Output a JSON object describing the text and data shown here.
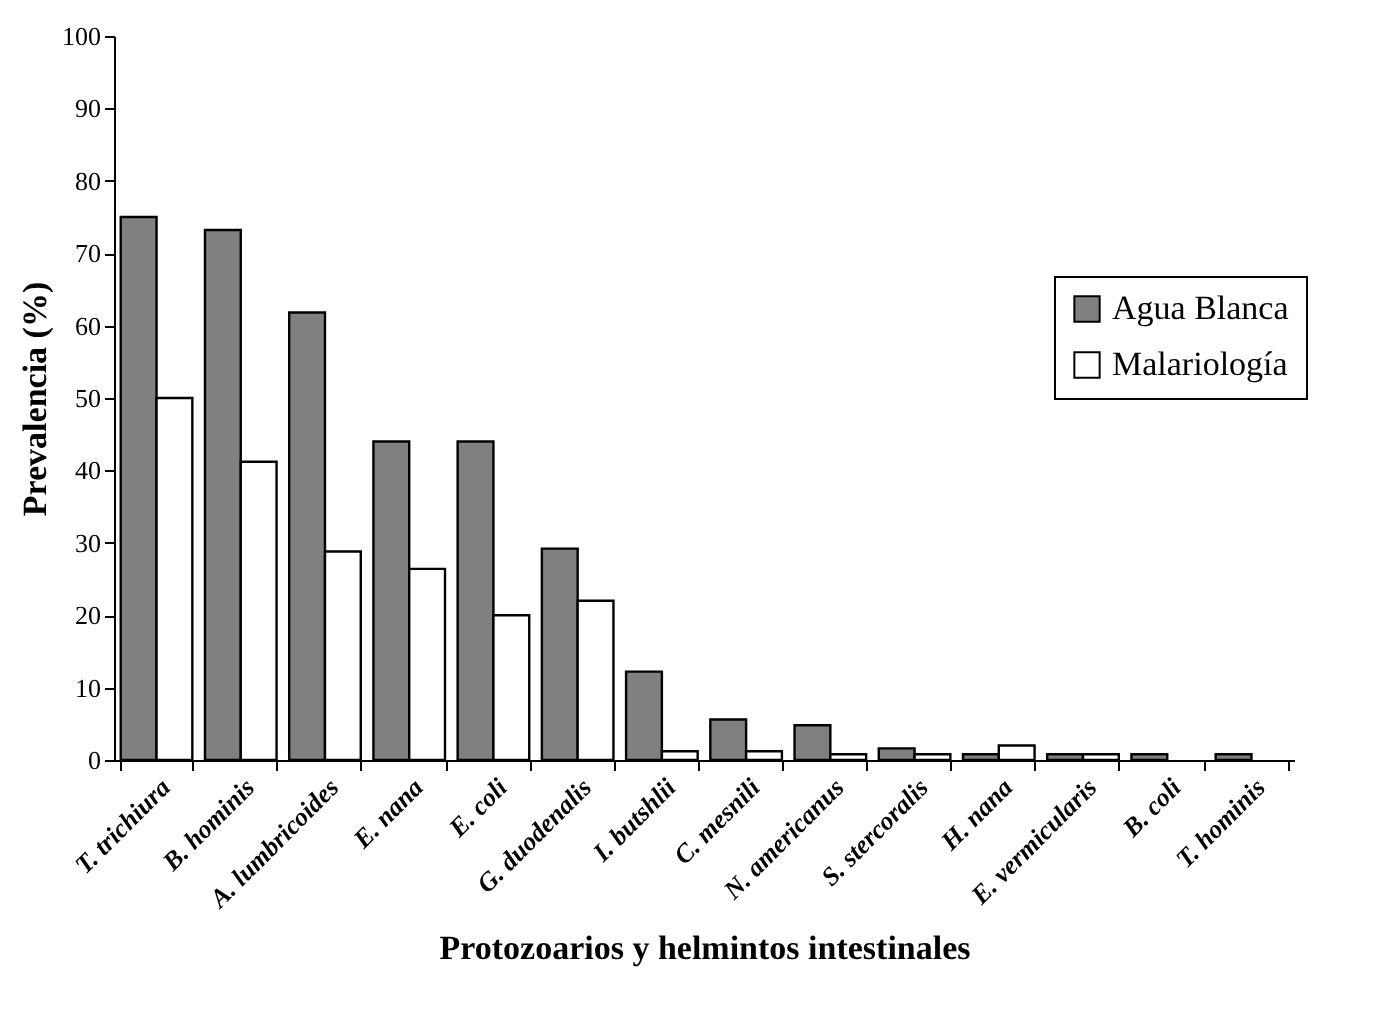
{
  "chart_data": {
    "type": "bar",
    "xlabel": "Protozoarios y helmintos intestinales",
    "ylabel": "Prevalencia (%)",
    "categories": [
      "T. trichiura",
      "B. hominis",
      "A. lumbricoides",
      "E. nana",
      "E. coli",
      "G. duodenalis",
      "I. butshlii",
      "C. mesnili",
      "N. americanus",
      "S. stercoralis",
      "H. nana",
      "E. vermicularis",
      "B. coli",
      "T. hominis"
    ],
    "series": [
      {
        "name": "Agua Blanca",
        "color": "#808080",
        "values": [
          75,
          73.2,
          61.8,
          44,
          44,
          29.2,
          12.2,
          5.6,
          4.8,
          1.6,
          0.8,
          0.8,
          0.8,
          0.8
        ]
      },
      {
        "name": "Malariología",
        "color": "#ffffff",
        "values": [
          50,
          41.2,
          28.8,
          26.4,
          20,
          22,
          1.2,
          1.2,
          0.8,
          0.8,
          2,
          0.8,
          null,
          null
        ]
      }
    ],
    "ylim": [
      0,
      100
    ],
    "yticks": [
      0,
      10,
      20,
      30,
      40,
      50,
      60,
      70,
      80,
      90,
      100
    ],
    "grid": false,
    "legend": "right"
  }
}
